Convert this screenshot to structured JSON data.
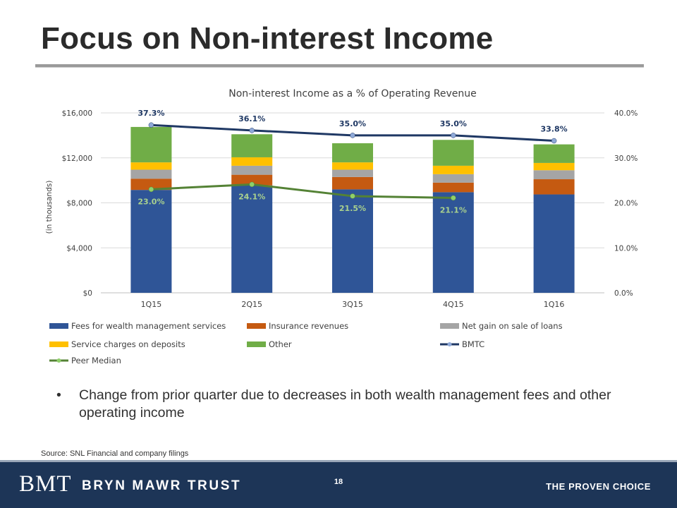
{
  "slide": {
    "title": "Focus on Non-interest Income",
    "bullet": "Change from prior quarter due to decreases in both wealth management fees and other operating income",
    "bullet_marker": "•",
    "source": "Source: SNL Financial and company filings",
    "page_number": "18"
  },
  "footer": {
    "logo_mark": "BMT",
    "logo_name": "BRYN MAWR TRUST",
    "tagline": "THE PROVEN CHOICE",
    "background_color": "#1d3557"
  },
  "chart_data": {
    "type": "bar",
    "stacked": true,
    "title": "Non-interest Income as a % of Operating Revenue",
    "ylabel": "(in thousands)",
    "ylim": [
      0,
      16000
    ],
    "yticks": [
      "$0",
      "$4,000",
      "$8,000",
      "$12,000",
      "$16,000"
    ],
    "y2lim": [
      0,
      40
    ],
    "y2ticks": [
      "0.0%",
      "10.0%",
      "20.0%",
      "30.0%",
      "40.0%"
    ],
    "categories": [
      "1Q15",
      "2Q15",
      "3Q15",
      "4Q15",
      "1Q16"
    ],
    "series": [
      {
        "name": "Fees for wealth management services",
        "color": "#2f5597",
        "values": [
          9150,
          9550,
          9200,
          8950,
          8750
        ]
      },
      {
        "name": "Insurance revenues",
        "color": "#c55a11",
        "values": [
          1000,
          950,
          1100,
          850,
          1350
        ]
      },
      {
        "name": "Net gain on sale of loans",
        "color": "#a5a5a5",
        "values": [
          800,
          800,
          650,
          750,
          800
        ]
      },
      {
        "name": "Service charges on deposits",
        "color": "#ffc000",
        "values": [
          650,
          750,
          650,
          750,
          650
        ]
      },
      {
        "name": "Other",
        "color": "#70ad47",
        "values": [
          3150,
          2050,
          1700,
          2300,
          1650
        ]
      }
    ],
    "lines": [
      {
        "name": "BMTC",
        "color": "#1f3864",
        "marker_color": "#8fa9d8",
        "values": [
          37.3,
          36.1,
          35.0,
          35.0,
          33.8
        ],
        "labels": [
          "37.3%",
          "36.1%",
          "35.0%",
          "35.0%",
          "33.8%"
        ],
        "label_color": "#1f3864"
      },
      {
        "name": "Peer Median",
        "color": "#548235",
        "marker_color": "#8fcf6a",
        "values": [
          23.0,
          24.1,
          21.5,
          21.1,
          null
        ],
        "labels": [
          "23.0%",
          "24.1%",
          "21.5%",
          "21.1%",
          ""
        ],
        "label_color": "#a9d18e"
      }
    ],
    "legend_position": "bottom",
    "grid": true
  }
}
